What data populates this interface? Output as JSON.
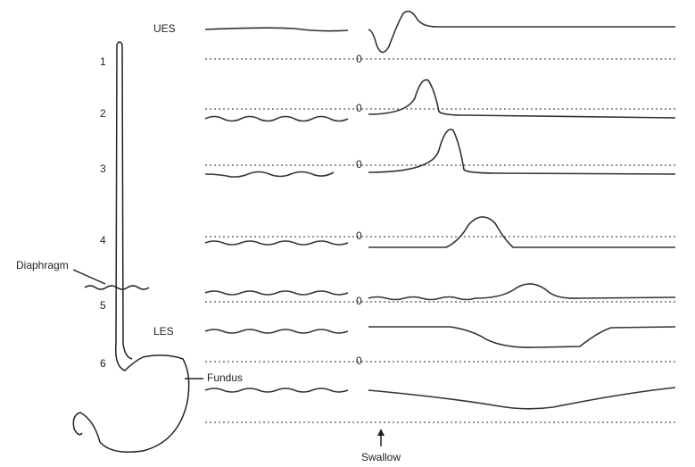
{
  "labels": {
    "ues": "UES",
    "les": "LES",
    "diaphragm": "Diaphragm",
    "fundus": "Fundus",
    "swallow": "Swallow"
  },
  "sensors": [
    "1",
    "2",
    "3",
    "4",
    "5",
    "6"
  ],
  "zero_labels": [
    "0",
    "0",
    "0",
    "0",
    "0",
    "0"
  ]
}
